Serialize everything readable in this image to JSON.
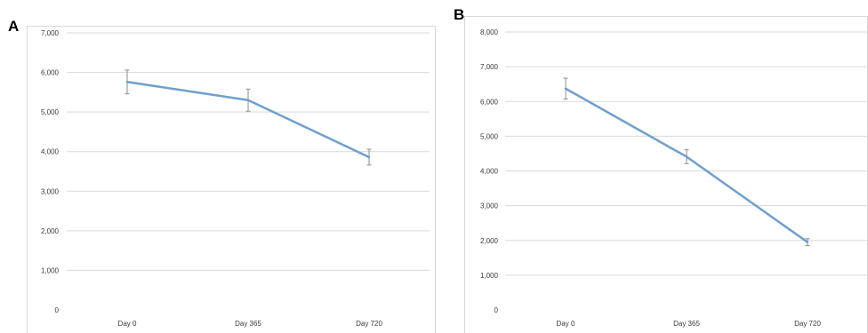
{
  "panels": [
    {
      "letter": "A"
    },
    {
      "letter": "B"
    }
  ],
  "chart_data": [
    {
      "type": "line",
      "panel": "A",
      "categories": [
        "Day 0",
        "Day 365",
        "Day 720"
      ],
      "series": [
        {
          "values": [
            5760,
            5300,
            3860
          ],
          "error": [
            300,
            280,
            200
          ],
          "color": "#6f9fcf"
        }
      ],
      "ylim": [
        0,
        7000
      ],
      "yticks": [
        0,
        1000,
        2000,
        3000,
        4000,
        5000,
        6000,
        7000
      ],
      "ytick_labels": [
        "0",
        "1,000",
        "2,000",
        "3,000",
        "4,000",
        "5,000",
        "6,000",
        "7,000"
      ],
      "grid": true,
      "title": "",
      "xlabel": "",
      "ylabel": ""
    },
    {
      "type": "line",
      "panel": "B",
      "categories": [
        "Day 0",
        "Day 365",
        "Day 720"
      ],
      "series": [
        {
          "values": [
            6370,
            4410,
            1950
          ],
          "error": [
            300,
            200,
            100
          ],
          "color": "#6f9fcf"
        }
      ],
      "ylim": [
        0,
        8000
      ],
      "yticks": [
        0,
        1000,
        2000,
        3000,
        4000,
        5000,
        6000,
        7000,
        8000
      ],
      "ytick_labels": [
        "0",
        "1,000",
        "2,000",
        "3,000",
        "4,000",
        "5,000",
        "6,000",
        "7,000",
        "8,000"
      ],
      "grid": true,
      "title": "",
      "xlabel": "",
      "ylabel": ""
    }
  ]
}
